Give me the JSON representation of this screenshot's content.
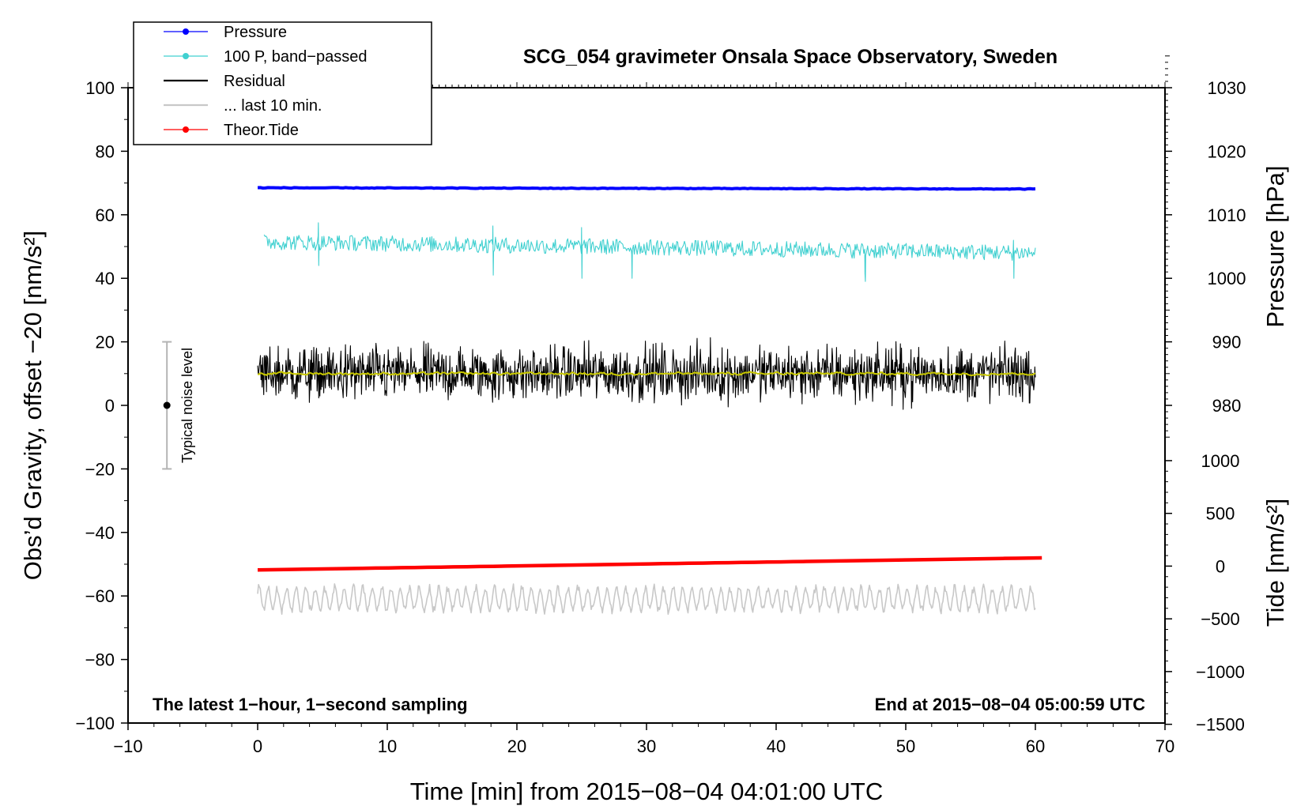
{
  "chart_data": {
    "type": "line",
    "title": "SCG_054 gravimeter Onsala Space Observatory, Sweden",
    "xlabel": "Time [min] from 2015−08−04 04:01:00 UTC",
    "ylabel_left": "Obs’d Gravity, offset −20 [nm/s²]",
    "ylabel_right_top": "Pressure [hPa]",
    "ylabel_right_bottom": "Tide [nm/s²]",
    "xlim": [
      -10,
      70
    ],
    "ylim": [
      -100,
      100
    ],
    "xticks": [
      -10,
      0,
      10,
      20,
      30,
      40,
      50,
      60,
      70
    ],
    "xtick_labels": [
      "−10",
      "0",
      "10",
      "20",
      "30",
      "40",
      "50",
      "60",
      "70"
    ],
    "yticks": [
      100,
      80,
      60,
      40,
      20,
      0,
      -20,
      -40,
      -60,
      -80,
      -100
    ],
    "ytick_labels": [
      "100",
      "80",
      "60",
      "40",
      "20",
      "0",
      "−20",
      "−40",
      "−60",
      "−80",
      "−100"
    ],
    "pressure_axis": {
      "ticks": [
        1030,
        1020,
        1010,
        1000,
        990,
        980
      ],
      "labels": [
        "1030",
        "1020",
        "1010",
        "1000",
        "990",
        "980"
      ],
      "hpa_to_left": {
        "ref_hpa": 1000,
        "ref_y": 40,
        "scale": 2
      }
    },
    "tide_axis": {
      "ticks": [
        1000,
        500,
        0,
        -500,
        -1000,
        -1500
      ],
      "labels": [
        "1000",
        "500",
        "0",
        "−500",
        "−1000",
        "−1500"
      ],
      "nms2_to_left": {
        "ref": 0,
        "ref_y": -50.6,
        "scale": 0.0332
      }
    },
    "series": [
      {
        "name": "Pressure",
        "color": "#0000ff",
        "x_range": [
          0,
          60
        ],
        "center": 68.5,
        "trend": -0.4,
        "noise": 0.2,
        "marker": true
      },
      {
        "name": "100 P, band−passed",
        "color": "#40d0d0",
        "x_range": [
          0.5,
          60
        ],
        "center": 51.5,
        "trend": -3.5,
        "noise": 2.5,
        "spikes": [
          [
            4.7,
            57.5,
            44
          ],
          [
            18.1,
            56.5,
            41
          ],
          [
            25.0,
            56,
            40
          ],
          [
            28.8,
            47.5,
            40
          ],
          [
            46.8,
            41.5,
            39
          ],
          [
            58.3,
            52,
            40
          ]
        ]
      },
      {
        "name": "Residual",
        "color": "#000000",
        "x_range": [
          0,
          60
        ],
        "center": 10,
        "noise": 4.2
      },
      {
        "name": "... last 10 min.",
        "color": "#c8c8c8",
        "x_range": [
          0,
          60
        ],
        "center": -61,
        "noise": 3.5
      },
      {
        "name": "Theor.Tide",
        "color": "#ff0000",
        "x_range": [
          0,
          60.5
        ],
        "start": -51.8,
        "end": -48.0,
        "marker": true
      },
      {
        "name": "Residual smoothed",
        "color": "#c8c800",
        "x_range": [
          0,
          60
        ],
        "center": 10,
        "noise": 0.8
      }
    ],
    "legend": {
      "position": "top-left",
      "entries": [
        {
          "label": "Pressure",
          "color": "#0000ff",
          "marker": true
        },
        {
          "label": "100 P, band−passed",
          "color": "#40d0d0",
          "marker": true
        },
        {
          "label": "Residual",
          "color": "#000000",
          "marker": false
        },
        {
          "label": "... last 10 min.",
          "color": "#c8c8c8",
          "marker": false
        },
        {
          "label": "Theor.Tide",
          "color": "#ff0000",
          "marker": true
        }
      ]
    },
    "noise_bar": {
      "x": -7,
      "y": 0,
      "low": -20,
      "high": 20,
      "label": "Typical noise level"
    },
    "notes": {
      "bottom_left": "The latest 1−hour, 1−second sampling",
      "bottom_right": "End at 2015−08−04 05:00:59 UTC"
    }
  }
}
